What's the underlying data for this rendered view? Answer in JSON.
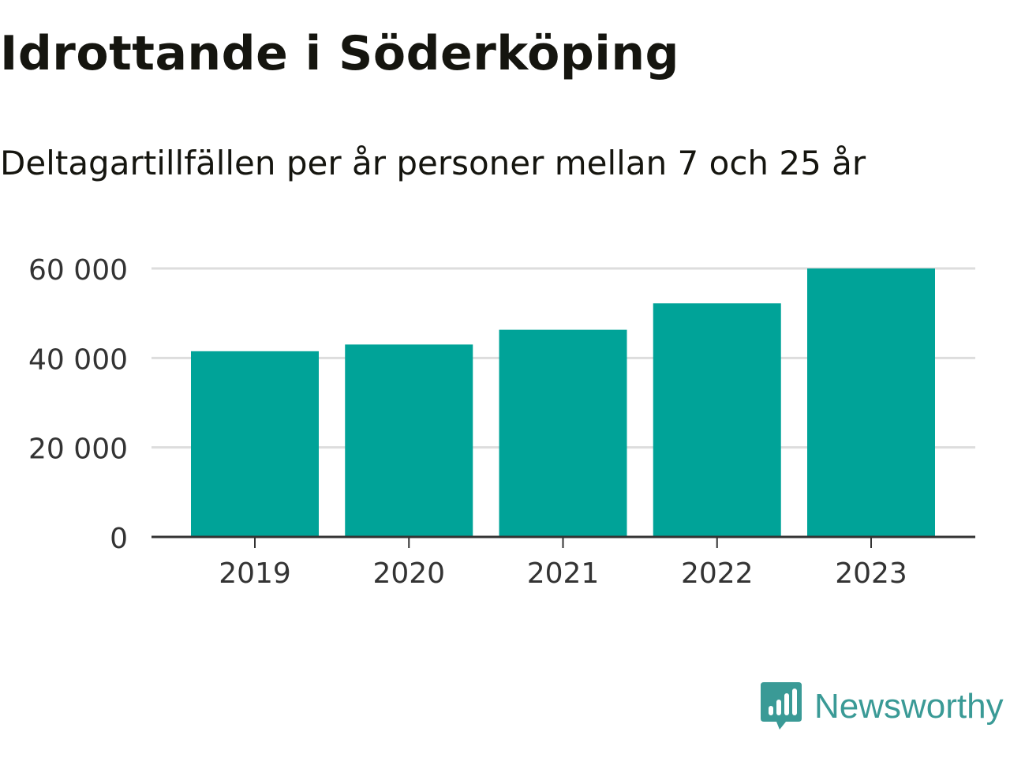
{
  "header": {
    "title": "Idrottande i Söderköping",
    "subtitle": "Deltagartillfällen per år personer mellan 7 och 25 år"
  },
  "chart_data": {
    "type": "bar",
    "categories": [
      "2019",
      "2020",
      "2021",
      "2022",
      "2023"
    ],
    "values": [
      41500,
      43000,
      46300,
      52200,
      60000
    ],
    "ylim": [
      0,
      60000
    ],
    "yticks": [
      0,
      20000,
      40000,
      60000
    ],
    "ytick_labels": [
      "0",
      "20 000",
      "40 000",
      "60 000"
    ],
    "xlabel": "",
    "ylabel": "",
    "grid": true,
    "bar_color": "#00a398",
    "grid_color": "#dddddd",
    "axis_color": "#333333"
  },
  "branding": {
    "name": "Newsworthy",
    "color": "#3a9a96",
    "icon": "newsworthy-logo-icon"
  }
}
